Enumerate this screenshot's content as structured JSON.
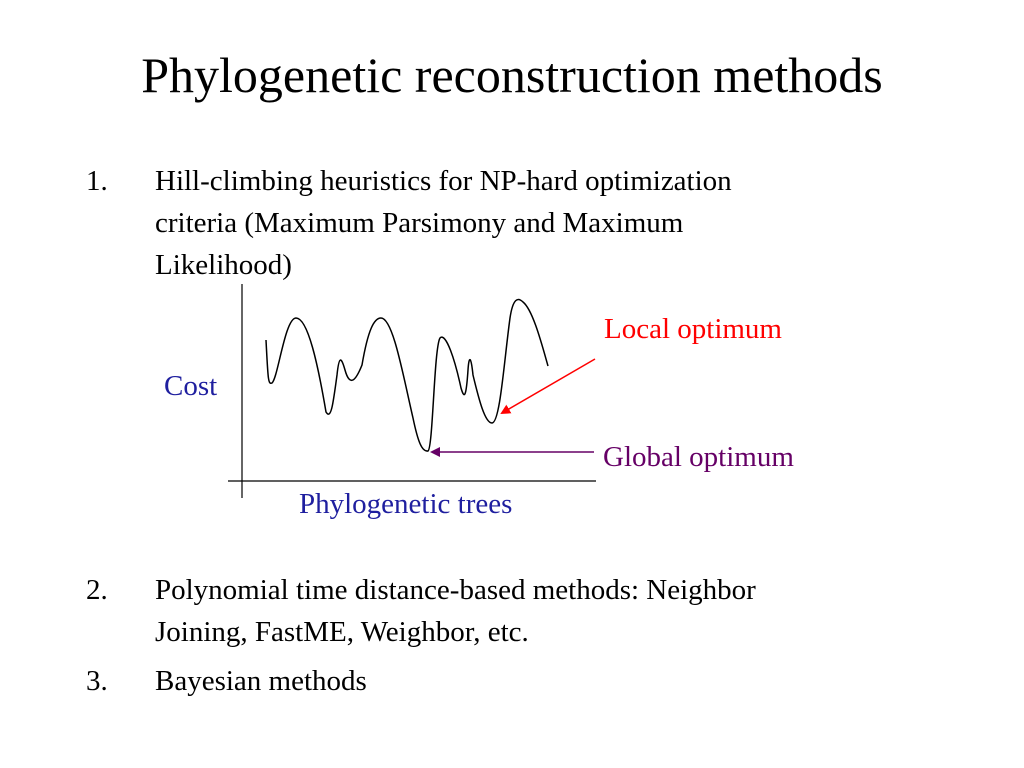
{
  "slide": {
    "title": "Phylogenetic reconstruction methods"
  },
  "list": [
    {
      "number": "1.",
      "line1": "Hill-climbing heuristics for NP-hard optimization",
      "line2": "criteria (Maximum Parsimony and Maximum",
      "line3": "Likelihood)"
    },
    {
      "number": "2.",
      "line1": "Polynomial time distance-based methods: Neighbor",
      "line2": "Joining, FastME, Weighbor, etc."
    },
    {
      "number": "3.",
      "line1": "Bayesian methods"
    }
  ],
  "diagram": {
    "y_label": "Cost",
    "x_label": "Phylogenetic trees",
    "local_label": "Local optimum",
    "global_label": "Global optimum",
    "colors": {
      "axis_label": "#1f1f9f",
      "local": "#ff0000",
      "global": "#660066",
      "curve": "#000000"
    }
  }
}
